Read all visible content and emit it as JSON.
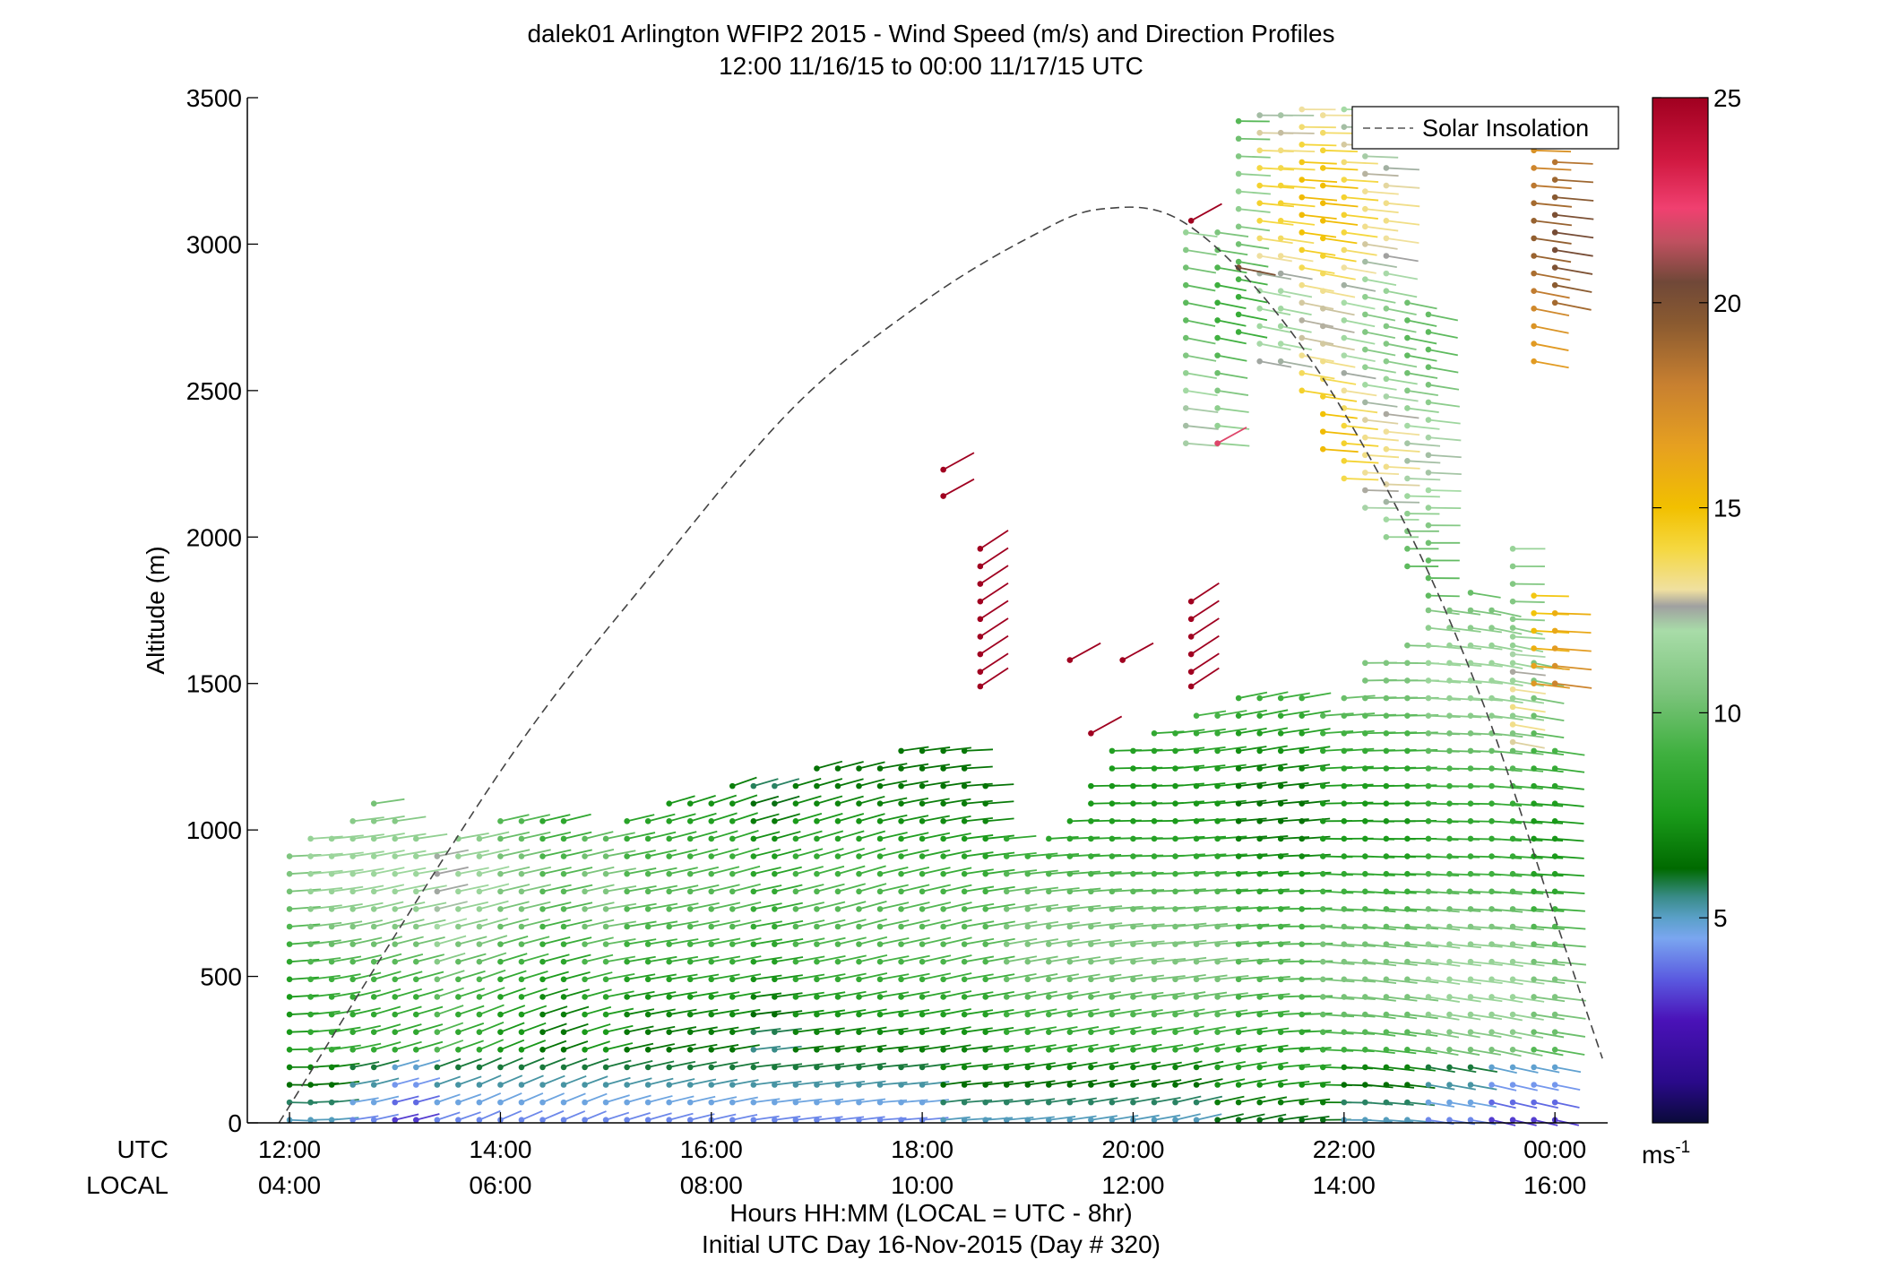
{
  "chart_data": {
    "type": "scatter",
    "title": "dalek01 Arlington WFIP2 2015 - Wind Speed (m/s) and Direction Profiles",
    "subtitle": "12:00 11/16/15 to 00:00 11/17/15  UTC",
    "ylabel": "Altitude (m)",
    "xlabel": "Hours HH:MM  (LOCAL = UTC - 8hr)",
    "xlabel2": "Initial UTC Day 16-Nov-2015 (Day # 320)",
    "x_row_label_utc": "UTC",
    "x_row_label_local": "LOCAL",
    "x_ticks_utc": [
      "12:00",
      "14:00",
      "16:00",
      "18:00",
      "20:00",
      "22:00",
      "00:00"
    ],
    "x_ticks_local": [
      "04:00",
      "06:00",
      "08:00",
      "10:00",
      "12:00",
      "14:00",
      "16:00"
    ],
    "x_tick_hours": [
      12,
      14,
      16,
      18,
      20,
      22,
      24
    ],
    "xlim_hours": [
      11.6,
      24.5
    ],
    "ylim": [
      0,
      3500
    ],
    "y_ticks": [
      0,
      500,
      1000,
      1500,
      2000,
      2500,
      3000,
      3500
    ],
    "legend": {
      "label": "Solar Insolation",
      "placement": "top-right"
    },
    "colorbar": {
      "ticks": [
        5,
        10,
        15,
        20,
        25
      ],
      "range": [
        0,
        25
      ],
      "unit_main": "ms",
      "unit_exp": "-1",
      "stops": [
        [
          0,
          "#0a0a3a"
        ],
        [
          1,
          "#2a0a8a"
        ],
        [
          2.5,
          "#4a12b8"
        ],
        [
          3.5,
          "#5a5ae0"
        ],
        [
          4.5,
          "#7aa6f0"
        ],
        [
          5,
          "#5aa0c8"
        ],
        [
          5.5,
          "#3a8c8a"
        ],
        [
          6.2,
          "#006a00"
        ],
        [
          7.5,
          "#1a9a1a"
        ],
        [
          9,
          "#3fb03f"
        ],
        [
          10.5,
          "#7cc47c"
        ],
        [
          12,
          "#a8dca8"
        ],
        [
          12.6,
          "#a0a0a0"
        ],
        [
          13,
          "#f0e0a0"
        ],
        [
          14,
          "#f5d840"
        ],
        [
          15,
          "#f2c000"
        ],
        [
          16.5,
          "#e6a020"
        ],
        [
          18,
          "#c88030"
        ],
        [
          19.5,
          "#8a5a30"
        ],
        [
          20.5,
          "#704838"
        ],
        [
          21.5,
          "#c05060"
        ],
        [
          22.3,
          "#f04070"
        ],
        [
          23.5,
          "#d01840"
        ],
        [
          25,
          "#a00020"
        ]
      ]
    },
    "solar_insolation_curve": {
      "style": "dashed",
      "points": [
        [
          11.9,
          0
        ],
        [
          14.0,
          1200
        ],
        [
          15.5,
          1900
        ],
        [
          16.8,
          2450
        ],
        [
          18.0,
          2800
        ],
        [
          19.0,
          3020
        ],
        [
          19.7,
          3120
        ],
        [
          20.5,
          3070
        ],
        [
          21.5,
          2700
        ],
        [
          22.5,
          2100
        ],
        [
          23.3,
          1450
        ],
        [
          24.0,
          700
        ],
        [
          24.45,
          220
        ]
      ]
    },
    "profiles": [
      {
        "t": 12.0,
        "top": 960,
        "low": 5,
        "mid": 9,
        "wdir": 270
      },
      {
        "t": 12.2,
        "top": 1000,
        "low": 5,
        "mid": 10,
        "wdir": 275
      },
      {
        "t": 12.4,
        "top": 1020,
        "low": 5,
        "mid": 10,
        "wdir": 280
      },
      {
        "t": 12.6,
        "top": 1060,
        "low": 4,
        "mid": 10,
        "wdir": 285
      },
      {
        "t": 12.8,
        "top": 1100,
        "low": 4,
        "mid": 10,
        "wdir": 290
      },
      {
        "t": 13.0,
        "top": 1060,
        "low": 3,
        "mid": 10,
        "wdir": 290
      },
      {
        "t": 13.2,
        "top": 1000,
        "low": 3,
        "mid": 10,
        "wdir": 290
      },
      {
        "t": 13.4,
        "top": 960,
        "low": 4,
        "mid": 11,
        "wdir": 295
      },
      {
        "t": 13.6,
        "top": 980,
        "low": 4,
        "mid": 10,
        "wdir": 295
      },
      {
        "t": 13.8,
        "top": 1000,
        "low": 4,
        "mid": 10,
        "wdir": 300
      },
      {
        "t": 14.0,
        "top": 1040,
        "low": 4,
        "mid": 9,
        "wdir": 300
      },
      {
        "t": 14.2,
        "top": 1060,
        "low": 4,
        "mid": 9,
        "wdir": 300
      },
      {
        "t": 14.4,
        "top": 1080,
        "low": 4,
        "mid": 8,
        "wdir": 300
      },
      {
        "t": 14.6,
        "top": 1080,
        "low": 4,
        "mid": 8,
        "wdir": 300
      },
      {
        "t": 14.8,
        "top": 1020,
        "low": 4,
        "mid": 9,
        "wdir": 300
      },
      {
        "t": 15.0,
        "top": 1000,
        "low": 4,
        "mid": 9,
        "wdir": 295
      },
      {
        "t": 15.2,
        "top": 1040,
        "low": 4,
        "mid": 8,
        "wdir": 295
      },
      {
        "t": 15.4,
        "top": 1080,
        "low": 4,
        "mid": 8,
        "wdir": 295
      },
      {
        "t": 15.6,
        "top": 1100,
        "low": 4,
        "mid": 8,
        "wdir": 295
      },
      {
        "t": 15.8,
        "top": 1130,
        "low": 4,
        "mid": 8,
        "wdir": 295
      },
      {
        "t": 16.0,
        "top": 1140,
        "low": 4,
        "mid": 8,
        "wdir": 295
      },
      {
        "t": 16.2,
        "top": 1150,
        "low": 4,
        "mid": 8,
        "wdir": 295
      },
      {
        "t": 16.4,
        "top": 1160,
        "low": 4,
        "mid": 7,
        "wdir": 290
      },
      {
        "t": 16.6,
        "top": 1180,
        "low": 4,
        "mid": 7,
        "wdir": 290
      },
      {
        "t": 16.8,
        "top": 1200,
        "low": 4,
        "mid": 8,
        "wdir": 290
      },
      {
        "t": 17.0,
        "top": 1220,
        "low": 4,
        "mid": 8,
        "wdir": 290
      },
      {
        "t": 17.2,
        "top": 1240,
        "low": 4,
        "mid": 8,
        "wdir": 290
      },
      {
        "t": 17.4,
        "top": 1250,
        "low": 4,
        "mid": 8,
        "wdir": 290
      },
      {
        "t": 17.6,
        "top": 1260,
        "low": 4,
        "mid": 8,
        "wdir": 285
      },
      {
        "t": 17.8,
        "top": 1280,
        "low": 4,
        "mid": 8,
        "wdir": 285
      },
      {
        "t": 18.0,
        "top": 1320,
        "low": 4,
        "mid": 8,
        "wdir": 285
      },
      {
        "t": 18.2,
        "top": 1320,
        "low": 5,
        "mid": 8,
        "wdir": 285
      },
      {
        "t": 18.4,
        "top": 1280,
        "low": 5,
        "mid": 8,
        "wdir": 280
      },
      {
        "t": 18.6,
        "top": 1160,
        "low": 5,
        "mid": 8,
        "wdir": 280
      },
      {
        "t": 18.8,
        "top": 1000,
        "low": 5,
        "mid": 9,
        "wdir": 280
      },
      {
        "t": 19.0,
        "top": 960,
        "low": 5,
        "mid": 9,
        "wdir": 280
      },
      {
        "t": 19.2,
        "top": 1000,
        "low": 5,
        "mid": 9,
        "wdir": 280
      },
      {
        "t": 19.4,
        "top": 1060,
        "low": 5,
        "mid": 9,
        "wdir": 280
      },
      {
        "t": 19.6,
        "top": 1180,
        "low": 5,
        "mid": 9,
        "wdir": 280
      },
      {
        "t": 19.8,
        "top": 1300,
        "low": 5,
        "mid": 9,
        "wdir": 280
      },
      {
        "t": 20.0,
        "top": 1320,
        "low": 5,
        "mid": 9,
        "wdir": 280
      },
      {
        "t": 20.2,
        "top": 1340,
        "low": 5,
        "mid": 9,
        "wdir": 280
      },
      {
        "t": 20.4,
        "top": 1380,
        "low": 5,
        "mid": 9,
        "wdir": 285
      },
      {
        "t": 20.6,
        "top": 1400,
        "low": 5,
        "mid": 9,
        "wdir": 285
      },
      {
        "t": 20.8,
        "top": 1440,
        "low": 6,
        "mid": 9,
        "wdir": 285
      },
      {
        "t": 21.0,
        "top": 1480,
        "low": 6,
        "mid": 8,
        "wdir": 285
      },
      {
        "t": 21.2,
        "top": 1500,
        "low": 6,
        "mid": 8,
        "wdir": 285
      },
      {
        "t": 21.4,
        "top": 1480,
        "low": 6,
        "mid": 8,
        "wdir": 280
      },
      {
        "t": 21.6,
        "top": 1460,
        "low": 6,
        "mid": 8,
        "wdir": 280
      },
      {
        "t": 21.8,
        "top": 1420,
        "low": 6,
        "mid": 9,
        "wdir": 270
      },
      {
        "t": 22.0,
        "top": 1480,
        "low": 5,
        "mid": 9,
        "wdir": 270
      },
      {
        "t": 22.2,
        "top": 1600,
        "low": 5,
        "mid": 9,
        "wdir": 265
      },
      {
        "t": 22.4,
        "top": 1600,
        "low": 5,
        "mid": 9,
        "wdir": 265
      },
      {
        "t": 22.6,
        "top": 1680,
        "low": 5,
        "mid": 9,
        "wdir": 265
      },
      {
        "t": 22.8,
        "top": 1760,
        "low": 4,
        "mid": 10,
        "wdir": 260
      },
      {
        "t": 23.0,
        "top": 1800,
        "low": 4,
        "mid": 10,
        "wdir": 260
      },
      {
        "t": 23.2,
        "top": 1820,
        "low": 4,
        "mid": 10,
        "wdir": 260
      },
      {
        "t": 23.4,
        "top": 1760,
        "low": 3,
        "mid": 10,
        "wdir": 255
      },
      {
        "t": 23.6,
        "top": 1700,
        "low": 3,
        "mid": 10,
        "wdir": 255
      },
      {
        "t": 23.8,
        "top": 1580,
        "low": 3,
        "mid": 9,
        "wdir": 255
      },
      {
        "t": 24.0,
        "top": 1280,
        "low": 3,
        "mid": 9,
        "wdir": 255
      }
    ],
    "upper_segments": [
      {
        "t": 20.5,
        "from": 2320,
        "to": 3060,
        "speed": 11
      },
      {
        "t": 20.8,
        "from": 2320,
        "to": 3060,
        "speed": 10
      },
      {
        "t": 21.0,
        "from": 2700,
        "to": 3460,
        "speed": 10
      },
      {
        "t": 21.2,
        "from": 2600,
        "to": 3460,
        "speed": 13
      },
      {
        "t": 21.4,
        "from": 2600,
        "to": 3460,
        "speed": 13
      },
      {
        "t": 21.6,
        "from": 2500,
        "to": 3460,
        "speed": 14
      },
      {
        "t": 21.8,
        "from": 2300,
        "to": 3460,
        "speed": 14
      },
      {
        "t": 22.0,
        "from": 2200,
        "to": 3460,
        "speed": 13
      },
      {
        "t": 22.2,
        "from": 2100,
        "to": 3460,
        "speed": 12
      },
      {
        "t": 22.4,
        "from": 2000,
        "to": 3300,
        "speed": 12
      },
      {
        "t": 22.6,
        "from": 1900,
        "to": 2800,
        "speed": 11
      },
      {
        "t": 22.8,
        "from": 1800,
        "to": 2800,
        "speed": 11
      },
      {
        "t": 23.6,
        "from": 1300,
        "to": 2000,
        "speed": 12
      },
      {
        "t": 23.8,
        "from": 1500,
        "to": 1800,
        "speed": 16
      },
      {
        "t": 24.0,
        "from": 1500,
        "to": 1780,
        "speed": 17
      },
      {
        "t": 23.8,
        "from": 2600,
        "to": 3460,
        "speed": 18
      },
      {
        "t": 24.0,
        "from": 2800,
        "to": 3460,
        "speed": 19
      }
    ],
    "isolated_points": [
      {
        "t": 18.2,
        "alt": 2230,
        "speed": 25,
        "wdir": 315
      },
      {
        "t": 18.2,
        "alt": 2140,
        "speed": 25,
        "wdir": 315
      },
      {
        "t": 18.55,
        "alt": 1960,
        "speed": 25,
        "wdir": 320
      },
      {
        "t": 18.55,
        "alt": 1900,
        "speed": 25,
        "wdir": 320
      },
      {
        "t": 18.55,
        "alt": 1840,
        "speed": 25,
        "wdir": 320
      },
      {
        "t": 18.55,
        "alt": 1780,
        "speed": 25,
        "wdir": 320
      },
      {
        "t": 18.55,
        "alt": 1720,
        "speed": 25,
        "wdir": 320
      },
      {
        "t": 18.55,
        "alt": 1660,
        "speed": 25,
        "wdir": 320
      },
      {
        "t": 18.55,
        "alt": 1600,
        "speed": 25,
        "wdir": 320
      },
      {
        "t": 18.55,
        "alt": 1540,
        "speed": 25,
        "wdir": 320
      },
      {
        "t": 18.55,
        "alt": 1490,
        "speed": 25,
        "wdir": 320
      },
      {
        "t": 19.4,
        "alt": 1580,
        "speed": 25,
        "wdir": 315
      },
      {
        "t": 19.6,
        "alt": 1330,
        "speed": 25,
        "wdir": 315
      },
      {
        "t": 19.9,
        "alt": 1580,
        "speed": 25,
        "wdir": 315
      },
      {
        "t": 20.55,
        "alt": 1780,
        "speed": 25,
        "wdir": 320
      },
      {
        "t": 20.55,
        "alt": 1720,
        "speed": 25,
        "wdir": 320
      },
      {
        "t": 20.55,
        "alt": 1660,
        "speed": 25,
        "wdir": 320
      },
      {
        "t": 20.55,
        "alt": 1600,
        "speed": 25,
        "wdir": 320
      },
      {
        "t": 20.55,
        "alt": 1540,
        "speed": 25,
        "wdir": 320
      },
      {
        "t": 20.55,
        "alt": 1490,
        "speed": 25,
        "wdir": 320
      },
      {
        "t": 20.55,
        "alt": 3080,
        "speed": 25,
        "wdir": 315
      },
      {
        "t": 20.8,
        "alt": 2320,
        "speed": 22,
        "wdir": 315
      },
      {
        "t": 21.0,
        "alt": 2920,
        "speed": 20,
        "wdir": 250
      }
    ]
  }
}
